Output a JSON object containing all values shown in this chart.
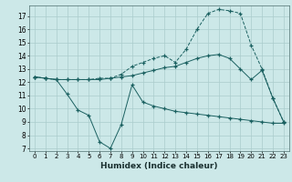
{
  "title": "",
  "xlabel": "Humidex (Indice chaleur)",
  "bg_color": "#cce8e8",
  "grid_color": "#aacccc",
  "line_color": "#1a6060",
  "xlim": [
    -0.5,
    23.5
  ],
  "ylim": [
    6.8,
    17.8
  ],
  "yticks": [
    7,
    8,
    9,
    10,
    11,
    12,
    13,
    14,
    15,
    16,
    17
  ],
  "xticks": [
    0,
    1,
    2,
    3,
    4,
    5,
    6,
    7,
    8,
    9,
    10,
    11,
    12,
    13,
    14,
    15,
    16,
    17,
    18,
    19,
    20,
    21,
    22,
    23
  ],
  "curve_top_x": [
    0,
    1,
    2,
    3,
    4,
    5,
    6,
    7,
    8,
    9,
    10,
    11,
    12,
    13,
    14,
    15,
    16,
    17,
    18,
    19,
    20,
    21,
    22,
    23
  ],
  "curve_top_y": [
    12.4,
    12.3,
    12.2,
    12.2,
    12.2,
    12.2,
    12.3,
    12.3,
    12.6,
    13.2,
    13.5,
    13.8,
    14.0,
    13.5,
    14.5,
    16.0,
    17.2,
    17.5,
    17.4,
    17.2,
    14.8,
    13.0,
    10.8,
    9.0
  ],
  "curve_mid_x": [
    0,
    1,
    2,
    3,
    4,
    5,
    6,
    7,
    8,
    9,
    10,
    11,
    12,
    13,
    14,
    15,
    16,
    17,
    18,
    19,
    20,
    21,
    22,
    23
  ],
  "curve_mid_y": [
    12.4,
    12.3,
    12.2,
    12.2,
    12.2,
    12.2,
    12.2,
    12.3,
    12.4,
    12.5,
    12.7,
    12.9,
    13.1,
    13.2,
    13.5,
    13.8,
    14.0,
    14.1,
    13.8,
    13.0,
    12.2,
    12.9,
    10.8,
    9.0
  ],
  "curve_bot_x": [
    0,
    1,
    2,
    3,
    4,
    5,
    6,
    7,
    8,
    9,
    10,
    11,
    12,
    13,
    14,
    15,
    16,
    17,
    18,
    19,
    20,
    21,
    22,
    23
  ],
  "curve_bot_y": [
    12.4,
    12.3,
    12.2,
    11.1,
    9.9,
    9.5,
    7.5,
    7.0,
    8.8,
    11.8,
    10.5,
    10.2,
    10.0,
    9.8,
    9.7,
    9.6,
    9.5,
    9.4,
    9.3,
    9.2,
    9.1,
    9.0,
    8.9,
    8.9
  ]
}
